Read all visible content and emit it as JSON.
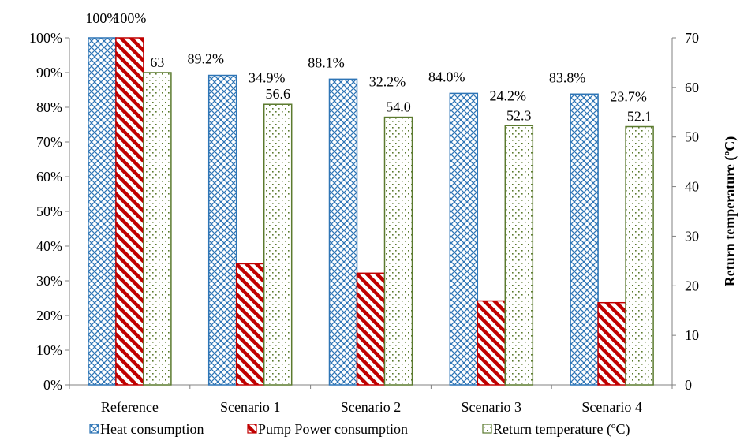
{
  "chart_data": {
    "type": "bar",
    "categories": [
      "Reference",
      "Scenario 1",
      "Scenario 2",
      "Scenario 3",
      "Scenario 4"
    ],
    "series": [
      {
        "name": "Heat consumption",
        "axis": "left",
        "values": [
          100,
          89.2,
          88.1,
          84.0,
          83.8
        ],
        "labels": [
          "100%",
          "89.2%",
          "88.1%",
          "84.0%",
          "83.8%"
        ],
        "color": "#2e75b6",
        "pattern": "diamond-grid"
      },
      {
        "name": "Pump Power consumption",
        "axis": "left",
        "values": [
          100,
          34.9,
          32.2,
          24.2,
          23.7
        ],
        "labels": [
          "100%",
          "34.9%",
          "32.2%",
          "24.2%",
          "23.7%"
        ],
        "color": "#c00000",
        "pattern": "diagonal-stripes"
      },
      {
        "name": "Return temperature (ºC)",
        "axis": "right",
        "values": [
          63,
          56.6,
          54.0,
          52.3,
          52.1
        ],
        "labels": [
          "63",
          "56.6",
          "54.0",
          "52.3",
          "52.1"
        ],
        "color": "#5b7a2e",
        "pattern": "dots"
      }
    ],
    "y_left": {
      "min": 0,
      "max": 100,
      "step": 10,
      "tick_labels": [
        "0%",
        "10%",
        "20%",
        "30%",
        "40%",
        "50%",
        "60%",
        "70%",
        "80%",
        "90%",
        "100%"
      ]
    },
    "y_right": {
      "min": 0,
      "max": 70,
      "step": 10,
      "label": "Return temperature (ºC)",
      "tick_labels": [
        "0",
        "10",
        "20",
        "30",
        "40",
        "50",
        "60",
        "70"
      ]
    },
    "legend_position": "bottom",
    "grid": false
  }
}
